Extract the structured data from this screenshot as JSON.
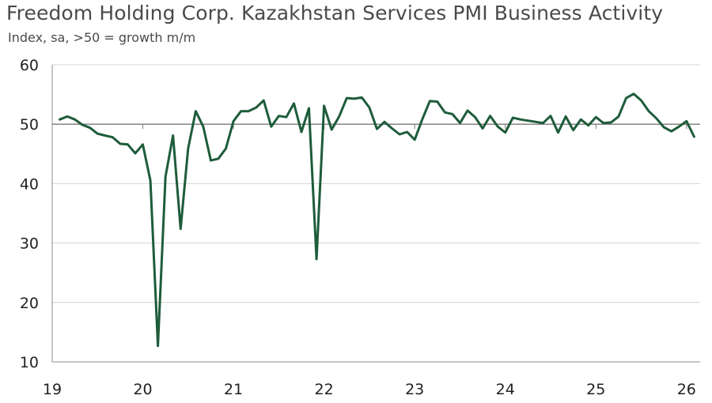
{
  "title": "Freedom Holding Corp. Kazakhstan Services PMI Business Activity",
  "subtitle": "Index, sa, >50 = growth m/m",
  "chart_data": {
    "type": "line",
    "title": "Freedom Holding Corp. Kazakhstan Services PMI Business Activity",
    "subtitle": "Index, sa, >50 = growth m/m",
    "xlabel": "",
    "ylabel": "",
    "xlim": [
      19,
      26.15
    ],
    "ylim": [
      10,
      60
    ],
    "x_ticks": [
      "19",
      "20",
      "21",
      "22",
      "23",
      "24",
      "25",
      "26"
    ],
    "y_ticks": [
      "60",
      "50",
      "40",
      "30",
      "20",
      "10"
    ],
    "reference_line": 50,
    "grid": "horizontal",
    "line_color": "#1e5c3a",
    "series": [
      {
        "x_start": "2019-02",
        "frequency": "monthly",
        "values": [
          50.8,
          51.3,
          50.8,
          49.9,
          49.4,
          48.4,
          48.1,
          47.8,
          46.7,
          46.6,
          45.1,
          46.6,
          40.5,
          12.7,
          41.2,
          48.1,
          32.4,
          45.9,
          52.2,
          49.6,
          43.9,
          44.2,
          45.9,
          50.5,
          52.2,
          52.2,
          52.8,
          54.0,
          49.6,
          51.4,
          51.2,
          53.5,
          48.7,
          52.7,
          27.3,
          53.1,
          49.1,
          51.3,
          54.4,
          54.3,
          54.5,
          52.8,
          49.2,
          50.4,
          49.3,
          48.3,
          48.7,
          47.4,
          50.8,
          53.9,
          53.8,
          52.0,
          51.7,
          50.2,
          52.3,
          51.2,
          49.3,
          51.4,
          49.6,
          48.6,
          51.1,
          50.8,
          50.6,
          50.4,
          50.2,
          51.4,
          48.6,
          51.3,
          49.0,
          50.8,
          49.8,
          51.2,
          50.2,
          50.3,
          51.3,
          54.4,
          55.1,
          54.0,
          52.2,
          51.0,
          49.5,
          48.8,
          49.6,
          50.5,
          47.9
        ]
      }
    ]
  }
}
